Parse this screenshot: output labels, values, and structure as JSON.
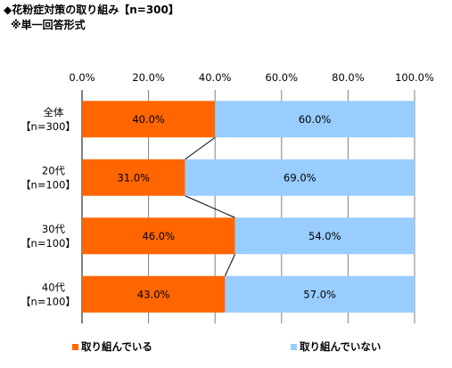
{
  "title": "◆花粉症対策の取り組み【n=300】",
  "subtitle": "※単一回答形式",
  "colors": {
    "series1": "#ff6600",
    "series2": "#99ccff",
    "grid": "#808080",
    "connector": "#000000"
  },
  "chart_data": {
    "type": "bar",
    "orientation": "horizontal",
    "stacked": true,
    "xlim": [
      0,
      100
    ],
    "x_ticks": [
      "0.0%",
      "20.0%",
      "40.0%",
      "60.0%",
      "80.0%",
      "100.0%"
    ],
    "categories": [
      [
        "全体",
        "【n=300】"
      ],
      [
        "20代",
        "【n=100】"
      ],
      [
        "30代",
        "【n=100】"
      ],
      [
        "40代",
        "【n=100】"
      ]
    ],
    "series": [
      {
        "name": "取り組んでいる",
        "values": [
          40.0,
          31.0,
          46.0,
          43.0
        ],
        "labels": [
          "40.0%",
          "31.0%",
          "46.0%",
          "43.0%"
        ]
      },
      {
        "name": "取り組んでいない",
        "values": [
          60.0,
          69.0,
          54.0,
          57.0
        ],
        "labels": [
          "60.0%",
          "69.0%",
          "54.0%",
          "57.0%"
        ]
      }
    ],
    "series_lines": true,
    "grid": true,
    "legend_position": "bottom"
  }
}
